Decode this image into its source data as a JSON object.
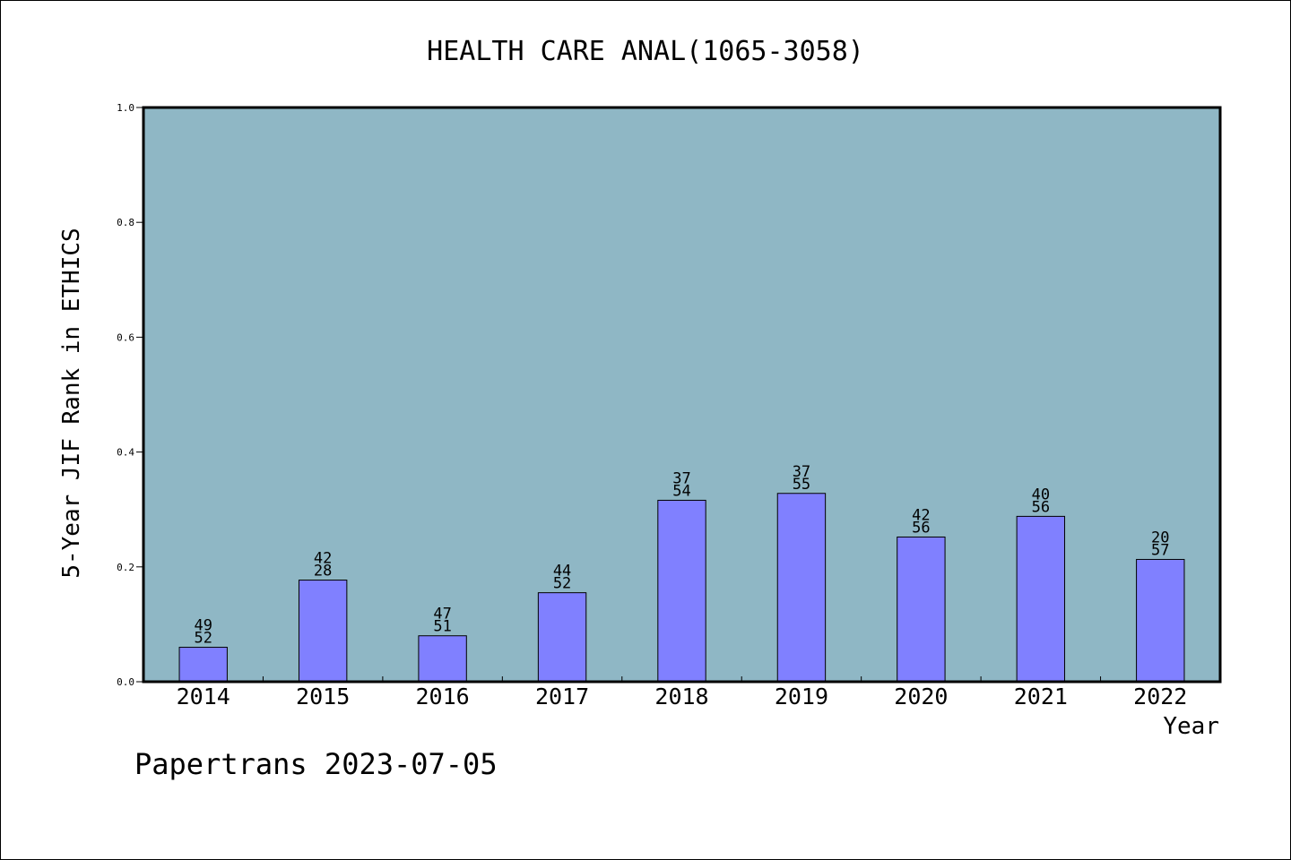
{
  "colors": {
    "plot_background": "#8fb7c5",
    "bar_fill": "#8080ff",
    "bar_stroke": "#000000",
    "frame": "#000000",
    "page_background": "#ffffff"
  },
  "footer": {
    "text": "Papertrans 2023-07-05"
  },
  "chart_data": {
    "type": "bar",
    "title": "HEALTH CARE ANAL(1065-3058)",
    "xlabel": "Year",
    "ylabel": "5-Year JIF Rank in ETHICS",
    "ylim": [
      0,
      1.0
    ],
    "yticks": [
      "0.0",
      "0.2",
      "0.4",
      "0.6",
      "0.8",
      "1.0"
    ],
    "ytick_values": [
      0.0,
      0.2,
      0.4,
      0.6,
      0.8,
      1.0
    ],
    "grid": false,
    "categories": [
      "2014",
      "2015",
      "2016",
      "2017",
      "2018",
      "2019",
      "2020",
      "2021",
      "2022"
    ],
    "values": [
      0.06,
      0.177,
      0.08,
      0.155,
      0.316,
      0.328,
      0.252,
      0.288,
      0.213
    ],
    "labels_top": [
      "49",
      "42",
      "47",
      "44",
      "37",
      "37",
      "42",
      "40",
      "20"
    ],
    "labels_bottom": [
      "52",
      "28",
      "51",
      "52",
      "54",
      "55",
      "56",
      "56",
      "57"
    ]
  }
}
